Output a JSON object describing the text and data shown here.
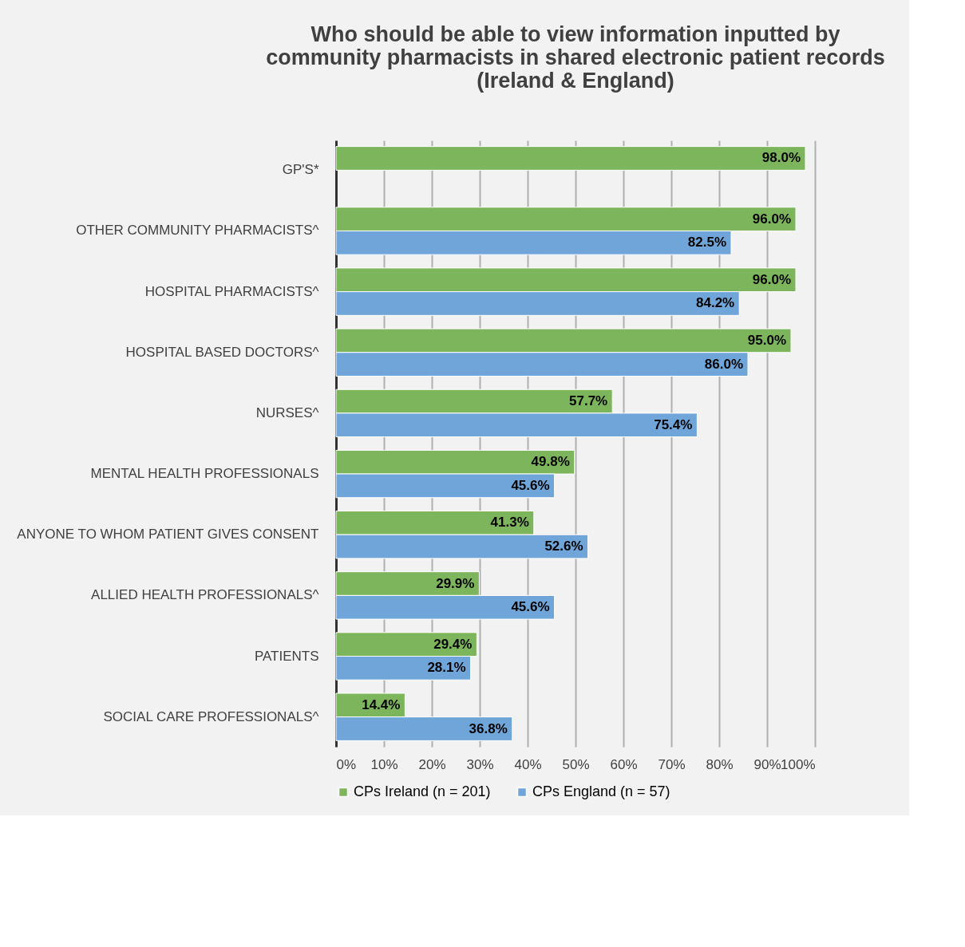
{
  "chart_data": {
    "type": "bar",
    "orientation": "horizontal",
    "title": "Who should be able to view information inputted by community pharmacists in shared electronic patient records (Ireland & England)",
    "categories": [
      "GP'S*",
      "OTHER COMMUNITY PHARMACISTS^",
      "HOSPITAL PHARMACISTS^",
      "HOSPITAL BASED DOCTORS^",
      "NURSES^",
      "MENTAL HEALTH PROFESSIONALS",
      "ANYONE TO WHOM PATIENT GIVES CONSENT",
      "ALLIED HEALTH PROFESSIONALS^",
      "PATIENTS",
      "SOCIAL CARE PROFESSIONALS^"
    ],
    "series": [
      {
        "name": "CPs Ireland (n = 201)",
        "color": "#7db55c",
        "values": [
          98.0,
          96.0,
          96.0,
          95.0,
          57.7,
          49.8,
          41.3,
          29.9,
          29.4,
          14.4
        ],
        "value_labels": [
          "98.0%",
          "96.0%",
          "96.0%",
          "95.0%",
          "57.7%",
          "49.8%",
          "41.3%",
          "29.9%",
          "29.4%",
          "14.4%"
        ]
      },
      {
        "name": "CPs England (n = 57)",
        "color": "#6fa5d9",
        "values": [
          null,
          82.5,
          84.2,
          86.0,
          75.4,
          45.6,
          52.6,
          45.6,
          28.1,
          36.8
        ],
        "value_labels": [
          null,
          "82.5%",
          "84.2%",
          "86.0%",
          "75.4%",
          "45.6%",
          "52.6%",
          "45.6%",
          "28.1%",
          "36.8%"
        ]
      }
    ],
    "xlim": [
      0,
      100
    ],
    "xticks": [
      {
        "value": 0,
        "label": "0%"
      },
      {
        "value": 10,
        "label": "10%"
      },
      {
        "value": 20,
        "label": "20%"
      },
      {
        "value": 30,
        "label": "30%"
      },
      {
        "value": 40,
        "label": "40%"
      },
      {
        "value": 50,
        "label": "50%"
      },
      {
        "value": 60,
        "label": "60%"
      },
      {
        "value": 70,
        "label": "70%"
      },
      {
        "value": 80,
        "label": "80%"
      },
      {
        "value": 90,
        "label": "90%"
      },
      {
        "value": 100,
        "label": "100%"
      }
    ],
    "grid": "x",
    "legend": "bottom"
  }
}
